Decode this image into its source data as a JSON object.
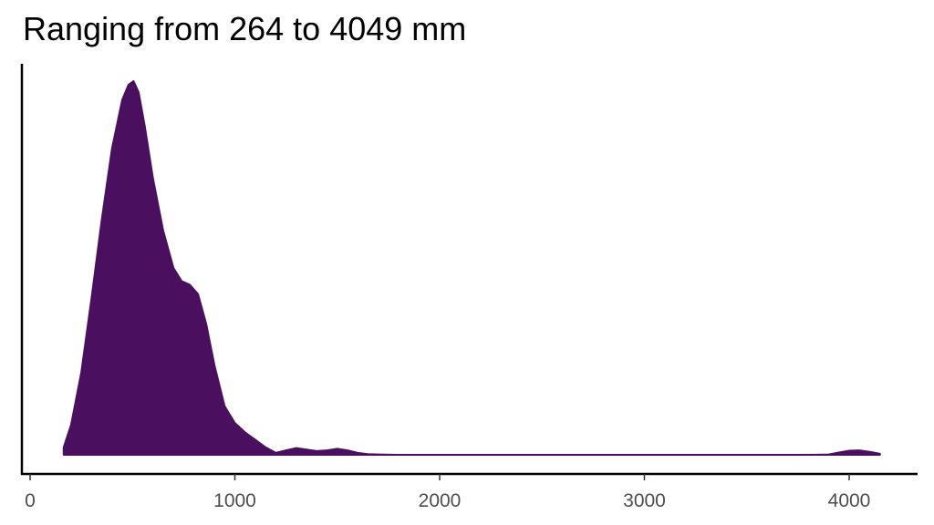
{
  "chart_data": {
    "type": "area",
    "title": "Ranging from 264 to 4049 mm",
    "xlabel": "",
    "ylabel": "",
    "xlim": [
      0,
      4300
    ],
    "x_ticks": [
      0,
      1000,
      2000,
      3000,
      4000
    ],
    "x_tick_labels": [
      "0",
      "1000",
      "2000",
      "3000",
      "4000"
    ],
    "y_ticks_shown": false,
    "grid": false,
    "legend": "none",
    "series": [
      {
        "x": [
          164,
          200,
          250,
          300,
          350,
          400,
          450,
          480,
          505,
          530,
          560,
          600,
          650,
          700,
          740,
          780,
          820,
          860,
          900,
          950,
          1000,
          1050,
          1100,
          1150,
          1200,
          1250,
          1300,
          1350,
          1400,
          1450,
          1500,
          1550,
          1600,
          1650,
          1700,
          1800,
          2000,
          2500,
          3000,
          3500,
          3800,
          3900,
          3950,
          4000,
          4049,
          4100,
          4150
        ],
        "y": [
          0.02,
          0.08,
          0.22,
          0.42,
          0.63,
          0.82,
          0.95,
          0.99,
          1.0,
          0.97,
          0.88,
          0.74,
          0.6,
          0.5,
          0.465,
          0.455,
          0.43,
          0.35,
          0.24,
          0.13,
          0.085,
          0.06,
          0.04,
          0.02,
          0.005,
          0.012,
          0.018,
          0.014,
          0.01,
          0.012,
          0.016,
          0.012,
          0.005,
          0.002,
          0.001,
          0.0,
          0.0,
          0.0,
          0.0,
          0.0,
          0.0,
          0.001,
          0.006,
          0.011,
          0.012,
          0.008,
          0.003
        ]
      }
    ],
    "colors": {
      "fill": "#4a0f5e",
      "axis": "#000000",
      "tick_label": "#4d4d4d"
    }
  }
}
